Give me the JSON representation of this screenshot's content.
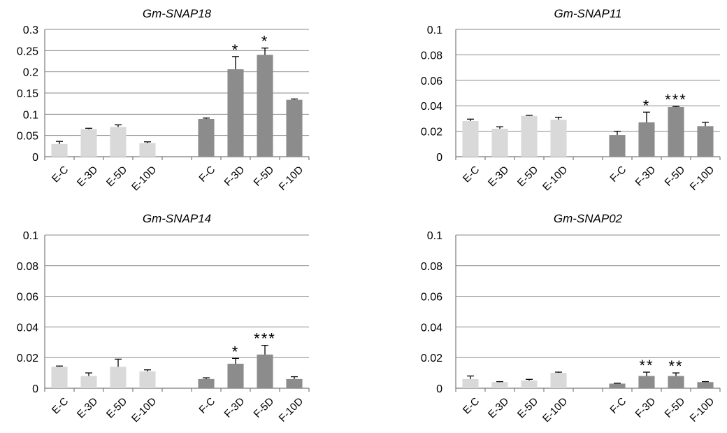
{
  "figure": {
    "bar_colors": {
      "E": "#d9d9d9",
      "F": "#8c8c8c"
    }
  },
  "chart_data": [
    {
      "type": "bar",
      "title": "Gm-SNAP18",
      "categories": [
        "E-C",
        "E-3D",
        "E-5D",
        "E-10D",
        "F-C",
        "F-3D",
        "F-5D",
        "F-10D"
      ],
      "values": [
        0.03,
        0.065,
        0.07,
        0.032,
        0.089,
        0.206,
        0.24,
        0.134
      ],
      "errors": [
        0.006,
        0.002,
        0.005,
        0.003,
        0.002,
        0.03,
        0.016,
        0.002
      ],
      "significance": [
        "",
        "",
        "",
        "",
        "",
        "*",
        "*",
        ""
      ],
      "ylim": [
        0,
        0.3
      ],
      "yticks": [
        "0",
        "0.05",
        "0.1",
        "0.15",
        "0.2",
        "0.25",
        "0.3"
      ],
      "grid": true
    },
    {
      "type": "bar",
      "title": "Gm-SNAP11",
      "categories": [
        "E-C",
        "E-3D",
        "E-5D",
        "E-10D",
        "F-C",
        "F-3D",
        "F-5D",
        "F-10D"
      ],
      "values": [
        0.028,
        0.022,
        0.032,
        0.029,
        0.017,
        0.027,
        0.039,
        0.024
      ],
      "errors": [
        0.0015,
        0.0015,
        0.0005,
        0.002,
        0.003,
        0.008,
        0.0005,
        0.003
      ],
      "significance": [
        "",
        "",
        "",
        "",
        "",
        "*",
        "***",
        ""
      ],
      "ylim": [
        0,
        0.1
      ],
      "yticks": [
        "0",
        "0.02",
        "0.04",
        "0.06",
        "0.08",
        "0.1"
      ],
      "grid": true
    },
    {
      "type": "bar",
      "title": "Gm-SNAP14",
      "categories": [
        "E-C",
        "E-3D",
        "E-5D",
        "E-10D",
        "F-C",
        "F-3D",
        "F-5D",
        "F-10D"
      ],
      "values": [
        0.014,
        0.008,
        0.014,
        0.011,
        0.006,
        0.016,
        0.022,
        0.006
      ],
      "errors": [
        0.0005,
        0.002,
        0.005,
        0.001,
        0.0008,
        0.0035,
        0.006,
        0.0015
      ],
      "significance": [
        "",
        "",
        "",
        "",
        "",
        "*",
        "***",
        ""
      ],
      "ylim": [
        0,
        0.1
      ],
      "yticks": [
        "0",
        "0.02",
        "0.04",
        "0.06",
        "0.08",
        "0.1"
      ],
      "grid": true
    },
    {
      "type": "bar",
      "title": "Gm-SNAP02",
      "categories": [
        "E-C",
        "E-3D",
        "E-5D",
        "E-10D",
        "F-C",
        "F-3D",
        "F-5D",
        "F-10D"
      ],
      "values": [
        0.006,
        0.004,
        0.005,
        0.01,
        0.003,
        0.008,
        0.008,
        0.004
      ],
      "errors": [
        0.002,
        0.0003,
        0.0008,
        0.0005,
        0.0003,
        0.0025,
        0.002,
        0.0003
      ],
      "significance": [
        "",
        "",
        "",
        "",
        "",
        "**",
        "**",
        ""
      ],
      "ylim": [
        0,
        0.1
      ],
      "yticks": [
        "0",
        "0.02",
        "0.04",
        "0.06",
        "0.08",
        "0.1"
      ],
      "grid": true
    }
  ]
}
